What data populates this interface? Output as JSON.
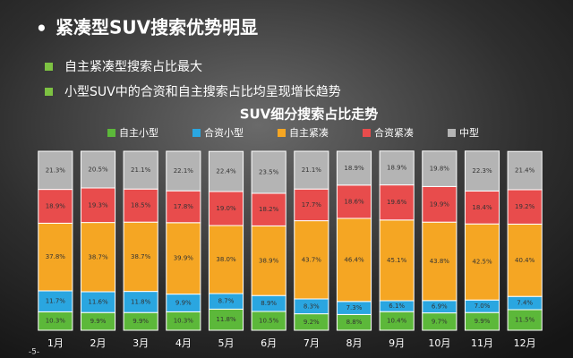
{
  "header": {
    "title": "紧凑型SUV搜索优势明显",
    "bullets": [
      "自主紧凑型搜索占比最大",
      "小型SUV中的合资和自主搜索占比均呈现增长趋势"
    ],
    "page_number": "-5-"
  },
  "chart_data": {
    "type": "stacked-bar",
    "title": "SUV细分搜索占比走势",
    "categories": [
      "1月",
      "2月",
      "3月",
      "4月",
      "5月",
      "6月",
      "7月",
      "8月",
      "9月",
      "10月",
      "11月",
      "12月"
    ],
    "series": [
      {
        "name": "自主小型",
        "color": "#5cb83a",
        "values": [
          10.3,
          9.9,
          9.9,
          10.3,
          11.8,
          10.5,
          9.2,
          8.8,
          10.4,
          9.7,
          9.9,
          11.5
        ],
        "value_labels": [
          "10.3%",
          "9.9%",
          "9.9%",
          "10.3%",
          "11.8%",
          "10.5%",
          "9.2%",
          "8.8%",
          "10.4%",
          "9.7%",
          "9.9%",
          "11.5%"
        ]
      },
      {
        "name": "合资小型",
        "color": "#2aa6e0",
        "values": [
          11.7,
          11.6,
          11.8,
          9.9,
          8.7,
          8.9,
          8.3,
          7.3,
          6.1,
          6.9,
          7.0,
          7.4
        ],
        "value_labels": [
          "11.7%",
          "11.6%",
          "11.8%",
          "9.9%",
          "8.7%",
          "8.9%",
          "8.3%",
          "7.3%",
          "6.1%",
          "6.9%",
          "7.0%",
          "7.4%"
        ]
      },
      {
        "name": "自主紧凑",
        "color": "#f5a623",
        "values": [
          37.8,
          38.7,
          38.7,
          39.9,
          38.0,
          38.9,
          43.7,
          46.4,
          45.1,
          43.8,
          42.5,
          40.4
        ],
        "value_labels": [
          "37.8%",
          "38.7%",
          "38.7%",
          "39.9%",
          "38.0%",
          "38.9%",
          "43.7%",
          "46.4%",
          "45.1%",
          "43.8%",
          "42.5%",
          "40.4%"
        ]
      },
      {
        "name": "合资紧凑",
        "color": "#e84c4c",
        "values": [
          18.9,
          19.3,
          18.5,
          17.8,
          19.0,
          18.2,
          17.7,
          18.6,
          19.6,
          19.9,
          18.4,
          19.2
        ],
        "value_labels": [
          "18.9%",
          "19.3%",
          "18.5%",
          "17.8%",
          "19.0%",
          "18.2%",
          "17.7%",
          "18.6%",
          "19.6%",
          "19.9%",
          "18.4%",
          "19.2%"
        ]
      },
      {
        "name": "中型",
        "color": "#b4b4b4",
        "values": [
          21.3,
          20.5,
          21.1,
          22.1,
          22.4,
          23.5,
          21.1,
          18.9,
          18.9,
          19.8,
          22.3,
          21.4
        ],
        "value_labels": [
          "21.3%",
          "20.5%",
          "21.1%",
          "22.1%",
          "22.4%",
          "23.5%",
          "21.1%",
          "18.9%",
          "18.9%",
          "19.8%",
          "22.3%",
          "21.4%"
        ]
      }
    ]
  }
}
